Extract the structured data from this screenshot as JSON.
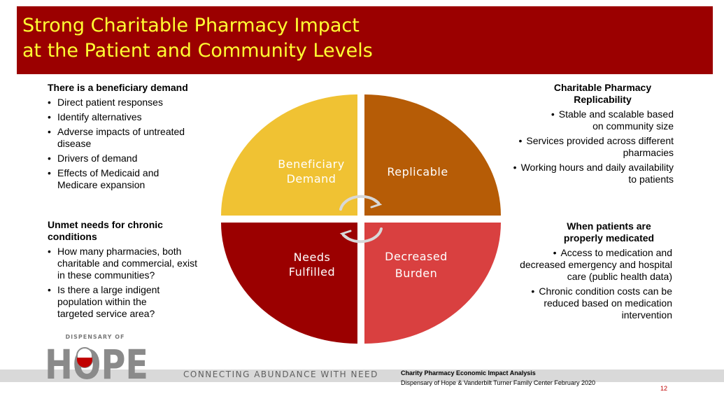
{
  "title": {
    "line1": "Strong Charitable Pharmacy Impact",
    "line2": "at the Patient and Community Levels"
  },
  "left_top": {
    "heading": "There is a beneficiary demand",
    "items": [
      "Direct patient responses",
      "Identify alternatives",
      "Adverse impacts of untreated disease",
      "Drivers of demand",
      "Effects of Medicaid and Medicare expansion"
    ]
  },
  "left_bottom": {
    "heading_l1": "Unmet needs for chronic",
    "heading_l2": "conditions",
    "items": [
      "How many pharmacies, both charitable and commercial, exist in these communities?",
      "Is there a large indigent population within the targeted service area?"
    ]
  },
  "right_top": {
    "heading_l1": "Charitable Pharmacy",
    "heading_l2": "Replicability",
    "items": [
      {
        "l1": "Stable and scalable based",
        "l2": "on community size"
      },
      {
        "l1": "Services provided across different",
        "l2": "pharmacies"
      },
      {
        "l1": "Working hours and daily availability",
        "l2": "to patients"
      }
    ]
  },
  "right_bottom": {
    "heading_l1": "When patients are",
    "heading_l2": "properly medicated",
    "items": [
      {
        "l1": "Access to medication and",
        "l2": "decreased emergency and hospital",
        "l3": "care (public health data)"
      },
      {
        "l1": "Chronic condition costs can be",
        "l2": "reduced based on medication",
        "l3": "intervention"
      }
    ]
  },
  "diagram": {
    "segments": [
      {
        "l1": "Beneficiary",
        "l2": "Demand",
        "color": "#f0c233"
      },
      {
        "l1": "Replicable",
        "l2": "",
        "color": "#b65c06"
      },
      {
        "l1": "Decreased",
        "l2": "Burden",
        "color": "#d94040"
      },
      {
        "l1": "Needs",
        "l2": "Fulfilled",
        "color": "#9b0000"
      }
    ],
    "cycle_icon": "circular-arrows-icon"
  },
  "footer": {
    "logo_small": "DISPENSARY OF",
    "logo_big": "HOPE",
    "tagline": "CONNECTING ABUNDANCE WITH NEED",
    "source_title": "Charity Pharmacy Economic Impact Analysis",
    "source_detail": "Dispensary of Hope & Vanderbilt Turner Family Center February 2020",
    "page_number": "12"
  },
  "colors": {
    "title_bar": "#9b0000",
    "title_text": "#ffff33",
    "page_number": "#c00000"
  }
}
